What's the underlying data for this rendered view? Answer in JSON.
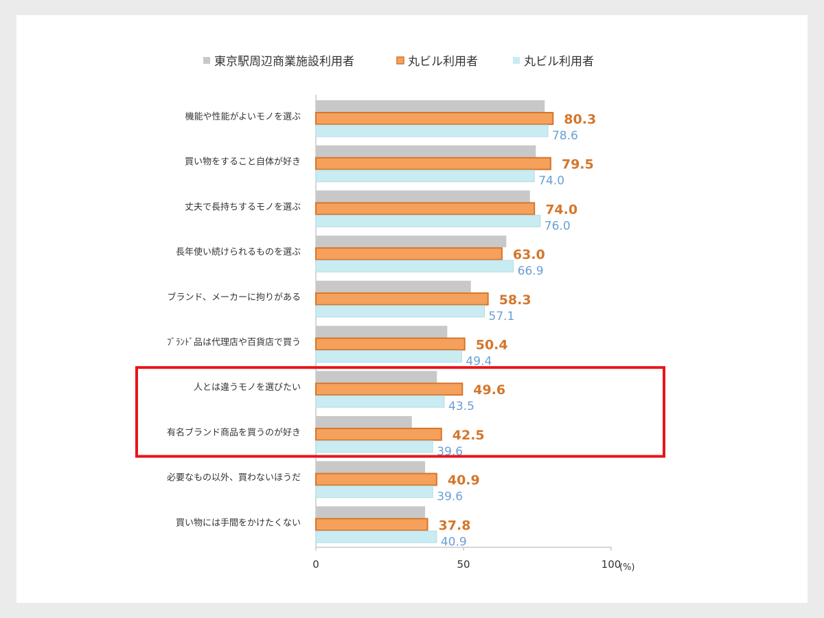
{
  "chart_data": {
    "type": "bar",
    "orientation": "horizontal",
    "categories": [
      "機能や性能がよいモノを選ぶ",
      "買い物をすること自体が好き",
      "丈夫で長持ちするモノを選ぶ",
      "長年使い続けられるものを選ぶ",
      "ブランド、メーカーに拘りがある",
      "ﾌﾞﾗﾝﾄﾞ品は代理店や百貨店で買う",
      "人とは違うモノを選びたい",
      "有名ブランド商品を買うのが好き",
      "必要なもの以外、買わないほうだ",
      "買い物には手間をかけたくない"
    ],
    "series": [
      {
        "name": "東京駅周辺商業施設利用者",
        "color": "#c8c8c8",
        "values": [
          77.5,
          74.5,
          72.5,
          64.5,
          52.5,
          44.5,
          41.0,
          32.5,
          37.0,
          37.0
        ]
      },
      {
        "name": "丸ビル利用者",
        "color": "#f5a15c",
        "values": [
          80.3,
          79.5,
          74.0,
          63.0,
          58.3,
          50.4,
          49.6,
          42.5,
          40.9,
          37.8
        ]
      },
      {
        "name": "丸ビル利用者",
        "color": "#c9ebf2",
        "values": [
          78.6,
          74.0,
          76.0,
          66.9,
          57.1,
          49.4,
          43.5,
          39.6,
          39.6,
          40.9
        ]
      }
    ],
    "data_labels": {
      "orange": [
        "80.3",
        "79.5",
        "74.0",
        "63.0",
        "58.3",
        "50.4",
        "49.6",
        "42.5",
        "40.9",
        "37.8"
      ],
      "blue": [
        "78.6",
        "74.0",
        "76.0",
        "66.9",
        "57.1",
        "49.4",
        "43.5",
        "39.6",
        "39.6",
        "40.9"
      ]
    },
    "xlim": [
      0,
      100
    ],
    "x_ticks": [
      "0",
      "50",
      "100"
    ],
    "x_unit": "(%)",
    "legend_position": "top",
    "highlight_color": "#e8151b",
    "highlight_categories": [
      6,
      7
    ]
  }
}
